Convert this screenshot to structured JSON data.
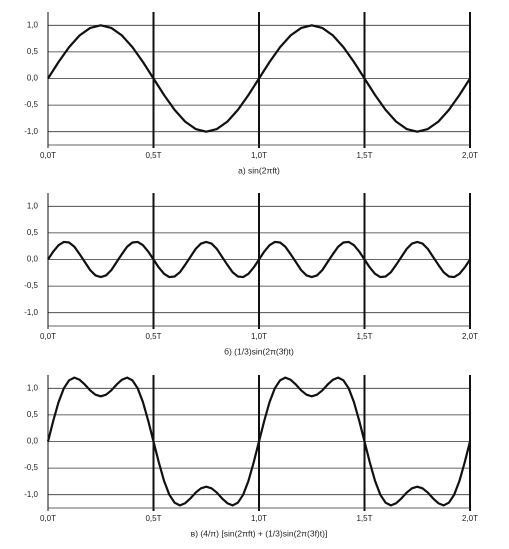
{
  "chart_data": [
    {
      "type": "line",
      "xlabel": "а) sin(2πft)",
      "x": [
        0,
        0.05,
        0.1,
        0.15,
        0.2,
        0.25,
        0.3,
        0.35,
        0.4,
        0.45,
        0.5,
        0.55,
        0.6,
        0.65,
        0.7,
        0.75,
        0.8,
        0.85,
        0.9,
        0.95,
        1,
        1.05,
        1.1,
        1.15,
        1.2,
        1.25,
        1.3,
        1.35,
        1.4,
        1.45,
        1.5,
        1.55,
        1.6,
        1.65,
        1.7,
        1.75,
        1.8,
        1.85,
        1.9,
        1.95,
        2
      ],
      "series": [
        {
          "color": "#111111",
          "values": [
            0,
            0.31,
            0.59,
            0.81,
            0.95,
            1,
            0.95,
            0.81,
            0.59,
            0.31,
            0,
            -0.31,
            -0.59,
            -0.81,
            -0.95,
            -1,
            -0.95,
            -0.81,
            -0.59,
            -0.31,
            0,
            0.31,
            0.59,
            0.81,
            0.95,
            1,
            0.95,
            0.81,
            0.59,
            0.31,
            0,
            -0.31,
            -0.59,
            -0.81,
            -0.95,
            -1,
            -0.95,
            -0.81,
            -0.59,
            -0.31,
            0
          ]
        }
      ],
      "xlim": [
        0,
        2
      ],
      "ylim": [
        -1.25,
        1.25
      ],
      "xticks": [
        {
          "value": 0,
          "label": "0,0T"
        },
        {
          "value": 0.5,
          "label": "0,5T"
        },
        {
          "value": 1,
          "label": "1,0T"
        },
        {
          "value": 1.5,
          "label": "1,5T"
        },
        {
          "value": 2,
          "label": "2,0T"
        }
      ],
      "yticks": [
        {
          "value": 1,
          "label": "1,0"
        },
        {
          "value": 0.5,
          "label": "0,5"
        },
        {
          "value": 0,
          "label": "0,0"
        },
        {
          "value": -0.5,
          "label": "-0,5"
        },
        {
          "value": -1,
          "label": "-1,0"
        }
      ]
    },
    {
      "type": "line",
      "xlabel": "б) (1/3)sin(2π(3f)t)",
      "x": [
        0,
        0.025,
        0.05,
        0.075,
        0.1,
        0.125,
        0.15,
        0.175,
        0.2,
        0.225,
        0.25,
        0.275,
        0.3,
        0.325,
        0.35,
        0.375,
        0.4,
        0.425,
        0.45,
        0.475,
        0.5,
        0.525,
        0.55,
        0.575,
        0.6,
        0.625,
        0.65,
        0.675,
        0.7,
        0.725,
        0.75,
        0.775,
        0.8,
        0.825,
        0.85,
        0.875,
        0.9,
        0.925,
        0.95,
        0.975,
        1,
        1.025,
        1.05,
        1.075,
        1.1,
        1.125,
        1.15,
        1.175,
        1.2,
        1.225,
        1.25,
        1.275,
        1.3,
        1.325,
        1.35,
        1.375,
        1.4,
        1.425,
        1.45,
        1.475,
        1.5,
        1.525,
        1.55,
        1.575,
        1.6,
        1.625,
        1.65,
        1.675,
        1.7,
        1.725,
        1.75,
        1.775,
        1.8,
        1.825,
        1.85,
        1.875,
        1.9,
        1.925,
        1.95,
        1.975,
        2
      ],
      "series": [
        {
          "color": "#111111",
          "values": [
            0,
            0.15,
            0.27,
            0.33,
            0.32,
            0.24,
            0.1,
            -0.05,
            -0.2,
            -0.3,
            -0.33,
            -0.3,
            -0.2,
            -0.05,
            0.1,
            0.24,
            0.32,
            0.33,
            0.27,
            0.15,
            0,
            -0.15,
            -0.27,
            -0.33,
            -0.32,
            -0.24,
            -0.1,
            0.05,
            0.2,
            0.3,
            0.33,
            0.3,
            0.2,
            0.05,
            -0.1,
            -0.24,
            -0.32,
            -0.33,
            -0.27,
            -0.15,
            0,
            0.15,
            0.27,
            0.33,
            0.32,
            0.24,
            0.1,
            -0.05,
            -0.2,
            -0.3,
            -0.33,
            -0.3,
            -0.2,
            -0.05,
            0.1,
            0.24,
            0.32,
            0.33,
            0.27,
            0.15,
            0,
            -0.15,
            -0.27,
            -0.33,
            -0.32,
            -0.24,
            -0.1,
            0.05,
            0.2,
            0.3,
            0.33,
            0.3,
            0.2,
            0.05,
            -0.1,
            -0.24,
            -0.32,
            -0.33,
            -0.27,
            -0.15,
            0
          ]
        }
      ],
      "xlim": [
        0,
        2
      ],
      "ylim": [
        -1.25,
        1.25
      ],
      "xticks": [
        {
          "value": 0,
          "label": "0,0T"
        },
        {
          "value": 0.5,
          "label": "0,5T"
        },
        {
          "value": 1,
          "label": "1,0T"
        },
        {
          "value": 1.5,
          "label": "1,5T"
        },
        {
          "value": 2,
          "label": "2,0T"
        }
      ],
      "yticks": [
        {
          "value": 1,
          "label": "1,0"
        },
        {
          "value": 0.5,
          "label": "0,5"
        },
        {
          "value": 0,
          "label": "0,0"
        },
        {
          "value": -0.5,
          "label": "-0,5"
        },
        {
          "value": -1,
          "label": "-1,0"
        }
      ]
    },
    {
      "type": "line",
      "xlabel": "в) (4/π) [sin(2πft) + (1/3)sin(2π(3f)t)]",
      "x": [
        0,
        0.025,
        0.05,
        0.075,
        0.1,
        0.125,
        0.15,
        0.175,
        0.2,
        0.225,
        0.25,
        0.275,
        0.3,
        0.325,
        0.35,
        0.375,
        0.4,
        0.425,
        0.45,
        0.475,
        0.5,
        0.525,
        0.55,
        0.575,
        0.6,
        0.625,
        0.65,
        0.675,
        0.7,
        0.725,
        0.75,
        0.775,
        0.8,
        0.825,
        0.85,
        0.875,
        0.9,
        0.925,
        0.95,
        0.975,
        1,
        1.025,
        1.05,
        1.075,
        1.1,
        1.125,
        1.15,
        1.175,
        1.2,
        1.225,
        1.25,
        1.275,
        1.3,
        1.325,
        1.35,
        1.375,
        1.4,
        1.425,
        1.45,
        1.475,
        1.5,
        1.525,
        1.55,
        1.575,
        1.6,
        1.625,
        1.65,
        1.675,
        1.7,
        1.725,
        1.75,
        1.775,
        1.8,
        1.825,
        1.85,
        1.875,
        1.9,
        1.925,
        1.95,
        1.975,
        2
      ],
      "series": [
        {
          "color": "#111111",
          "values": [
            0,
            0.39,
            0.74,
            1,
            1.15,
            1.2,
            1.16,
            1.07,
            0.96,
            0.88,
            0.85,
            0.88,
            0.96,
            1.07,
            1.16,
            1.2,
            1.15,
            1,
            0.74,
            0.39,
            0,
            -0.39,
            -0.74,
            -1,
            -1.15,
            -1.2,
            -1.16,
            -1.07,
            -0.96,
            -0.88,
            -0.85,
            -0.88,
            -0.96,
            -1.07,
            -1.16,
            -1.2,
            -1.15,
            -1,
            -0.74,
            -0.39,
            0,
            0.39,
            0.74,
            1,
            1.15,
            1.2,
            1.16,
            1.07,
            0.96,
            0.88,
            0.85,
            0.88,
            0.96,
            1.07,
            1.16,
            1.2,
            1.15,
            1,
            0.74,
            0.39,
            0,
            -0.39,
            -0.74,
            -1,
            -1.15,
            -1.2,
            -1.16,
            -1.07,
            -0.96,
            -0.88,
            -0.85,
            -0.88,
            -0.96,
            -1.07,
            -1.16,
            -1.2,
            -1.15,
            -1,
            -0.74,
            -0.39,
            0
          ]
        }
      ],
      "xlim": [
        0,
        2
      ],
      "ylim": [
        -1.25,
        1.25
      ],
      "xticks": [
        {
          "value": 0,
          "label": "0,0T"
        },
        {
          "value": 0.5,
          "label": "0,5T"
        },
        {
          "value": 1,
          "label": "1,0T"
        },
        {
          "value": 1.5,
          "label": "1,5T"
        },
        {
          "value": 2,
          "label": "2,0T"
        }
      ],
      "yticks": [
        {
          "value": 1,
          "label": "1,0"
        },
        {
          "value": 0.5,
          "label": "0,5"
        },
        {
          "value": 0,
          "label": "0,0"
        },
        {
          "value": -0.5,
          "label": "-0,5"
        },
        {
          "value": -1,
          "label": "-1,0"
        }
      ]
    }
  ]
}
